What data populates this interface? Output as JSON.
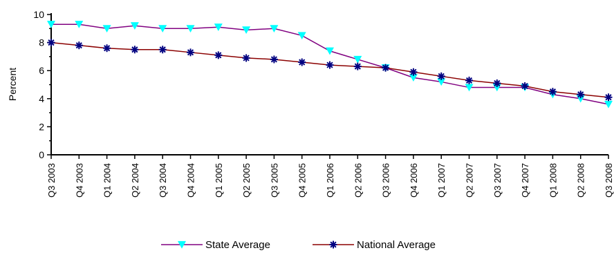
{
  "chart_data": {
    "type": "line",
    "xlabel": "",
    "ylabel": "Percent",
    "ylim": [
      0,
      10
    ],
    "yticks": [
      0,
      2,
      4,
      6,
      8,
      10
    ],
    "grid": false,
    "legend_position": "bottom",
    "categories": [
      "Q3 2003",
      "Q4 2003",
      "Q1 2004",
      "Q2 2004",
      "Q3 2004",
      "Q4 2004",
      "Q1 2005",
      "Q2 2005",
      "Q3 2005",
      "Q4 2005",
      "Q1 2006",
      "Q2 2006",
      "Q3 2006",
      "Q4 2006",
      "Q1 2007",
      "Q2 2007",
      "Q3 2007",
      "Q4 2007",
      "Q1 2008",
      "Q2 2008",
      "Q3 2008"
    ],
    "series": [
      {
        "name": "State Average",
        "color": "#800080",
        "marker_color": "#00FFFF",
        "marker": "triangle-down",
        "values": [
          9.3,
          9.3,
          9.0,
          9.2,
          9.0,
          9.0,
          9.1,
          8.9,
          9.0,
          8.5,
          7.4,
          6.8,
          6.2,
          5.5,
          5.2,
          4.8,
          4.8,
          4.8,
          4.3,
          4.0,
          3.6
        ]
      },
      {
        "name": "National Average",
        "color": "#8B0000",
        "marker_color": "#000080",
        "marker": "star",
        "values": [
          8.0,
          7.8,
          7.6,
          7.5,
          7.5,
          7.3,
          7.1,
          6.9,
          6.8,
          6.6,
          6.4,
          6.3,
          6.2,
          5.9,
          5.6,
          5.3,
          5.1,
          4.9,
          4.5,
          4.3,
          4.1
        ]
      }
    ]
  }
}
